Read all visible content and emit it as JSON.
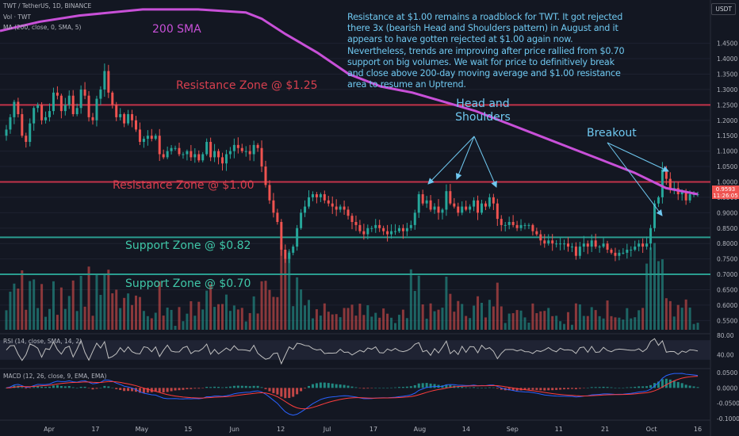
{
  "header": {
    "symbol_line": "TWT / TetherUS, 1D, BINANCE",
    "vol_line": "Vol · TWT",
    "ma_line": "MA (200, close, 0, SMA, 5)",
    "rsi_line": "RSI (14, close, SMA, 14, 2)",
    "macd_line": "MACD (12, 26, close, 9, EMA, EMA)",
    "currency_button": "USDT"
  },
  "note_text": "Resistance at $1.00 remains a roadblock for TWT. It got rejected there 3x (bearish Head and Shoulders pattern) in August and it appears to have gotten rejected at $1.00 again now. Nevertheless, trends are improving after price rallied from $0.70 support on big volumes. We wait for price to definitively break and close above 200-day moving average and $1.00 resistance area to resume an Uptrend.",
  "annotations": {
    "sma_label": "200 SMA",
    "res125": "Resistance Zone @ $1.25",
    "res100": "Resistance Zone @ $1.00",
    "sup082": "Support Zone @ $0.82",
    "sup070": "Support Zone @ $0.70",
    "hs_line1": "Head and",
    "hs_line2": "Shoulders",
    "breakout": "Breakout"
  },
  "price_tag": {
    "price": "0.9593",
    "countdown": "11:26:05"
  },
  "colors": {
    "background": "#131722",
    "up": "#26a69a",
    "down": "#ef5350",
    "sma": "#c850d8",
    "resistance": "#c2334a",
    "support": "#2a9d8f",
    "note": "#6fc8f0",
    "rsi": "#c0c0c0",
    "macd_line": "#2962ff",
    "signal_line": "#ff3d3d"
  },
  "chart_data": {
    "type": "candlestick",
    "y_axis": {
      "min": 0.52,
      "max": 1.57,
      "ticks": [
        "1.4500",
        "1.4000",
        "1.3500",
        "1.3000",
        "1.2500",
        "1.2000",
        "1.1500",
        "1.1000",
        "1.0500",
        "1.0000",
        "0.9500",
        "0.9000",
        "0.8500",
        "0.8000",
        "0.7500",
        "0.7000",
        "0.6500",
        "0.6000",
        "0.5500"
      ]
    },
    "x_axis": {
      "labels": [
        "Apr",
        "17",
        "May",
        "15",
        "Jun",
        "12",
        "Jul",
        "17",
        "Aug",
        "14",
        "Sep",
        "11",
        "21",
        "Oct",
        "16"
      ]
    },
    "closes": [
      1.17,
      1.21,
      1.26,
      1.22,
      1.15,
      1.13,
      1.19,
      1.24,
      1.25,
      1.2,
      1.21,
      1.23,
      1.29,
      1.28,
      1.23,
      1.25,
      1.28,
      1.22,
      1.24,
      1.3,
      1.28,
      1.21,
      1.2,
      1.27,
      1.3,
      1.36,
      1.29,
      1.25,
      1.21,
      1.22,
      1.19,
      1.22,
      1.2,
      1.17,
      1.13,
      1.14,
      1.15,
      1.14,
      1.15,
      1.09,
      1.08,
      1.1,
      1.11,
      1.11,
      1.09,
      1.09,
      1.1,
      1.08,
      1.09,
      1.07,
      1.09,
      1.13,
      1.08,
      1.1,
      1.08,
      1.06,
      1.09,
      1.1,
      1.12,
      1.11,
      1.1,
      1.1,
      1.09,
      1.12,
      1.11,
      1.05,
      0.99,
      0.94,
      0.9,
      0.87,
      0.78,
      0.75,
      0.77,
      0.79,
      0.85,
      0.9,
      0.92,
      0.95,
      0.96,
      0.95,
      0.96,
      0.94,
      0.93,
      0.92,
      0.91,
      0.92,
      0.91,
      0.89,
      0.87,
      0.86,
      0.84,
      0.83,
      0.85,
      0.85,
      0.86,
      0.85,
      0.84,
      0.83,
      0.84,
      0.84,
      0.85,
      0.84,
      0.85,
      0.86,
      0.9,
      0.96,
      0.93,
      0.94,
      0.91,
      0.92,
      0.9,
      0.91,
      0.97,
      0.93,
      0.92,
      0.9,
      0.92,
      0.91,
      0.92,
      0.94,
      0.9,
      0.93,
      0.92,
      0.95,
      0.93,
      0.88,
      0.86,
      0.86,
      0.87,
      0.86,
      0.85,
      0.86,
      0.86,
      0.86,
      0.84,
      0.83,
      0.81,
      0.8,
      0.81,
      0.8,
      0.8,
      0.8,
      0.8,
      0.79,
      0.79,
      0.76,
      0.79,
      0.8,
      0.79,
      0.81,
      0.79,
      0.79,
      0.8,
      0.78,
      0.77,
      0.76,
      0.77,
      0.77,
      0.78,
      0.78,
      0.79,
      0.8,
      0.79,
      0.8,
      0.85,
      0.93,
      0.95,
      1.04,
      1.01,
      0.98,
      0.98,
      0.96,
      0.97,
      0.94,
      0.96,
      0.96,
      0.96
    ],
    "sma200": [
      [
        0,
        1.49
      ],
      [
        50,
        1.52
      ],
      [
        100,
        1.54
      ],
      [
        180,
        1.56
      ],
      [
        250,
        1.56
      ],
      [
        310,
        1.55
      ],
      [
        330,
        1.53
      ],
      [
        360,
        1.48
      ],
      [
        400,
        1.42
      ],
      [
        440,
        1.35
      ],
      [
        480,
        1.31
      ],
      [
        520,
        1.29
      ],
      [
        560,
        1.26
      ],
      [
        600,
        1.23
      ],
      [
        640,
        1.19
      ],
      [
        680,
        1.15
      ],
      [
        720,
        1.11
      ],
      [
        760,
        1.07
      ],
      [
        800,
        1.03
      ],
      [
        840,
        0.98
      ],
      [
        880,
        0.96
      ]
    ],
    "levels": {
      "resistance": [
        1.25,
        1.0
      ],
      "support": [
        0.82,
        0.7
      ]
    },
    "rsi": {
      "ymin": 20,
      "ymax": 80,
      "ticks": [
        "80.00",
        "40.00"
      ]
    },
    "macd": {
      "ymin": -0.1,
      "ymax": 0.05,
      "ticks": [
        "0.0500",
        "0.0000",
        "-0.0500",
        "-0.1000"
      ]
    }
  }
}
